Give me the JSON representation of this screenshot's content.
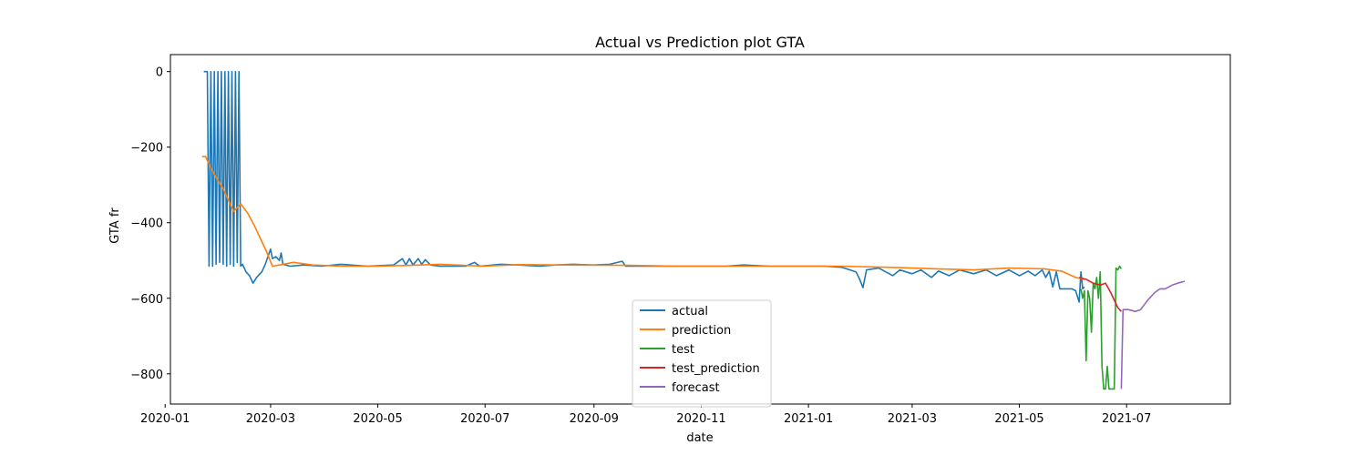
{
  "chart_data": {
    "type": "line",
    "title": "Actual vs Prediction plot GTA",
    "xlabel": "date",
    "ylabel": "GTA fr",
    "x_range": [
      "2020-01-04",
      "2021-08-29"
    ],
    "ylim": [
      -880,
      45
    ],
    "x_ticks": [
      "2020-01",
      "2020-03",
      "2020-05",
      "2020-07",
      "2020-09",
      "2020-11",
      "2021-01",
      "2021-03",
      "2021-05",
      "2021-07"
    ],
    "y_ticks": [
      0,
      -200,
      -400,
      -600,
      -800
    ],
    "grid": false,
    "legend_position": "lower-center",
    "series": [
      {
        "name": "actual",
        "color": "#1f77b4",
        "points": [
          [
            "2020-01-23",
            0
          ],
          [
            "2020-01-25",
            0
          ],
          [
            "2020-01-26",
            -515
          ],
          [
            "2020-01-27",
            0
          ],
          [
            "2020-01-28",
            -515
          ],
          [
            "2020-01-29",
            0
          ],
          [
            "2020-01-30",
            -510
          ],
          [
            "2020-01-31",
            0
          ],
          [
            "2020-02-01",
            -505
          ],
          [
            "2020-02-02",
            0
          ],
          [
            "2020-02-03",
            -510
          ],
          [
            "2020-02-04",
            0
          ],
          [
            "2020-02-05",
            -515
          ],
          [
            "2020-02-06",
            0
          ],
          [
            "2020-02-07",
            -510
          ],
          [
            "2020-02-08",
            0
          ],
          [
            "2020-02-09",
            -515
          ],
          [
            "2020-02-10",
            0
          ],
          [
            "2020-02-11",
            -505
          ],
          [
            "2020-02-12",
            0
          ],
          [
            "2020-02-13",
            -515
          ],
          [
            "2020-02-14",
            -510
          ],
          [
            "2020-02-16",
            -530
          ],
          [
            "2020-02-18",
            -540
          ],
          [
            "2020-02-20",
            -560
          ],
          [
            "2020-02-22",
            -545
          ],
          [
            "2020-02-25",
            -530
          ],
          [
            "2020-02-27",
            -510
          ],
          [
            "2020-03-01",
            -470
          ],
          [
            "2020-03-02",
            -495
          ],
          [
            "2020-03-04",
            -490
          ],
          [
            "2020-03-06",
            -500
          ],
          [
            "2020-03-07",
            -480
          ],
          [
            "2020-03-08",
            -510
          ],
          [
            "2020-03-12",
            -515
          ],
          [
            "2020-03-20",
            -512
          ],
          [
            "2020-03-30",
            -515
          ],
          [
            "2020-04-10",
            -510
          ],
          [
            "2020-04-25",
            -515
          ],
          [
            "2020-05-10",
            -512
          ],
          [
            "2020-05-15",
            -495
          ],
          [
            "2020-05-17",
            -512
          ],
          [
            "2020-05-19",
            -495
          ],
          [
            "2020-05-21",
            -512
          ],
          [
            "2020-05-24",
            -495
          ],
          [
            "2020-05-26",
            -510
          ],
          [
            "2020-05-28",
            -498
          ],
          [
            "2020-05-31",
            -512
          ],
          [
            "2020-06-05",
            -515
          ],
          [
            "2020-06-20",
            -515
          ],
          [
            "2020-06-25",
            -505
          ],
          [
            "2020-06-28",
            -515
          ],
          [
            "2020-07-10",
            -510
          ],
          [
            "2020-07-20",
            -512
          ],
          [
            "2020-08-01",
            -515
          ],
          [
            "2020-08-10",
            -512
          ],
          [
            "2020-08-20",
            -510
          ],
          [
            "2020-09-01",
            -512
          ],
          [
            "2020-09-10",
            -510
          ],
          [
            "2020-09-17",
            -502
          ],
          [
            "2020-09-19",
            -515
          ],
          [
            "2020-10-01",
            -515
          ],
          [
            "2020-10-20",
            -515
          ],
          [
            "2020-11-15",
            -515
          ],
          [
            "2020-11-25",
            -512
          ],
          [
            "2020-12-10",
            -515
          ],
          [
            "2021-01-10",
            -515
          ],
          [
            "2021-01-20",
            -518
          ],
          [
            "2021-01-28",
            -530
          ],
          [
            "2021-01-30",
            -548
          ],
          [
            "2021-02-01",
            -572
          ],
          [
            "2021-02-03",
            -525
          ],
          [
            "2021-02-10",
            -520
          ],
          [
            "2021-02-18",
            -540
          ],
          [
            "2021-02-22",
            -525
          ],
          [
            "2021-03-01",
            -535
          ],
          [
            "2021-03-06",
            -525
          ],
          [
            "2021-03-12",
            -545
          ],
          [
            "2021-03-16",
            -528
          ],
          [
            "2021-03-22",
            -540
          ],
          [
            "2021-03-28",
            -525
          ],
          [
            "2021-04-05",
            -535
          ],
          [
            "2021-04-12",
            -525
          ],
          [
            "2021-04-18",
            -540
          ],
          [
            "2021-04-25",
            -525
          ],
          [
            "2021-05-01",
            -540
          ],
          [
            "2021-05-06",
            -528
          ],
          [
            "2021-05-10",
            -540
          ],
          [
            "2021-05-14",
            -525
          ],
          [
            "2021-05-16",
            -545
          ],
          [
            "2021-05-18",
            -528
          ],
          [
            "2021-05-20",
            -570
          ],
          [
            "2021-05-22",
            -530
          ],
          [
            "2021-05-24",
            -575
          ],
          [
            "2021-05-28",
            -575
          ],
          [
            "2021-05-31",
            -575
          ],
          [
            "2021-06-02",
            -580
          ],
          [
            "2021-06-04",
            -610
          ],
          [
            "2021-06-05",
            -530
          ],
          [
            "2021-06-06",
            -575
          ],
          [
            "2021-06-07",
            -570
          ]
        ]
      },
      {
        "name": "prediction",
        "color": "#ff7f0e",
        "points": [
          [
            "2020-01-22",
            -225
          ],
          [
            "2020-01-24",
            -225
          ],
          [
            "2020-01-27",
            -255
          ],
          [
            "2020-01-30",
            -280
          ],
          [
            "2020-02-03",
            -310
          ],
          [
            "2020-02-06",
            -340
          ],
          [
            "2020-02-09",
            -370
          ],
          [
            "2020-02-13",
            -350
          ],
          [
            "2020-02-17",
            -375
          ],
          [
            "2020-02-21",
            -410
          ],
          [
            "2020-02-25",
            -450
          ],
          [
            "2020-02-28",
            -480
          ],
          [
            "2020-03-02",
            -515
          ],
          [
            "2020-03-06",
            -512
          ],
          [
            "2020-03-14",
            -505
          ],
          [
            "2020-03-25",
            -512
          ],
          [
            "2020-04-10",
            -515
          ],
          [
            "2020-05-01",
            -515
          ],
          [
            "2020-05-20",
            -513
          ],
          [
            "2020-06-05",
            -510
          ],
          [
            "2020-06-30",
            -515
          ],
          [
            "2020-07-20",
            -511
          ],
          [
            "2020-08-15",
            -512
          ],
          [
            "2020-09-20",
            -513
          ],
          [
            "2020-10-20",
            -515
          ],
          [
            "2020-12-15",
            -515
          ],
          [
            "2021-01-20",
            -515
          ],
          [
            "2021-02-15",
            -518
          ],
          [
            "2021-03-15",
            -522
          ],
          [
            "2021-04-05",
            -525
          ],
          [
            "2021-04-25",
            -520
          ],
          [
            "2021-05-15",
            -522
          ],
          [
            "2021-05-25",
            -528
          ],
          [
            "2021-06-02",
            -545
          ],
          [
            "2021-06-07",
            -550
          ]
        ]
      },
      {
        "name": "test",
        "color": "#2ca02c",
        "points": [
          [
            "2021-06-05",
            -575
          ],
          [
            "2021-06-06",
            -600
          ],
          [
            "2021-06-07",
            -580
          ],
          [
            "2021-06-08",
            -765
          ],
          [
            "2021-06-09",
            -580
          ],
          [
            "2021-06-10",
            -600
          ],
          [
            "2021-06-11",
            -690
          ],
          [
            "2021-06-12",
            -560
          ],
          [
            "2021-06-13",
            -575
          ],
          [
            "2021-06-14",
            -545
          ],
          [
            "2021-06-15",
            -600
          ],
          [
            "2021-06-16",
            -530
          ],
          [
            "2021-06-17",
            -780
          ],
          [
            "2021-06-18",
            -840
          ],
          [
            "2021-06-19",
            -840
          ],
          [
            "2021-06-20",
            -780
          ],
          [
            "2021-06-21",
            -840
          ],
          [
            "2021-06-22",
            -840
          ],
          [
            "2021-06-23",
            -840
          ],
          [
            "2021-06-24",
            -840
          ],
          [
            "2021-06-25",
            -520
          ],
          [
            "2021-06-26",
            -525
          ],
          [
            "2021-06-27",
            -515
          ],
          [
            "2021-06-28",
            -522
          ]
        ]
      },
      {
        "name": "test_prediction",
        "color": "#d62728",
        "points": [
          [
            "2021-06-04",
            -545
          ],
          [
            "2021-06-08",
            -550
          ],
          [
            "2021-06-12",
            -560
          ],
          [
            "2021-06-16",
            -565
          ],
          [
            "2021-06-19",
            -560
          ],
          [
            "2021-06-22",
            -585
          ],
          [
            "2021-06-26",
            -625
          ],
          [
            "2021-06-28",
            -635
          ]
        ]
      },
      {
        "name": "forecast",
        "color": "#9467bd",
        "points": [
          [
            "2021-06-28",
            -840
          ],
          [
            "2021-06-29",
            -630
          ],
          [
            "2021-07-02",
            -630
          ],
          [
            "2021-07-06",
            -635
          ],
          [
            "2021-07-09",
            -630
          ],
          [
            "2021-07-13",
            -605
          ],
          [
            "2021-07-17",
            -585
          ],
          [
            "2021-07-20",
            -575
          ],
          [
            "2021-07-23",
            -575
          ],
          [
            "2021-07-27",
            -565
          ],
          [
            "2021-07-30",
            -560
          ],
          [
            "2021-08-03",
            -555
          ]
        ]
      }
    ]
  }
}
